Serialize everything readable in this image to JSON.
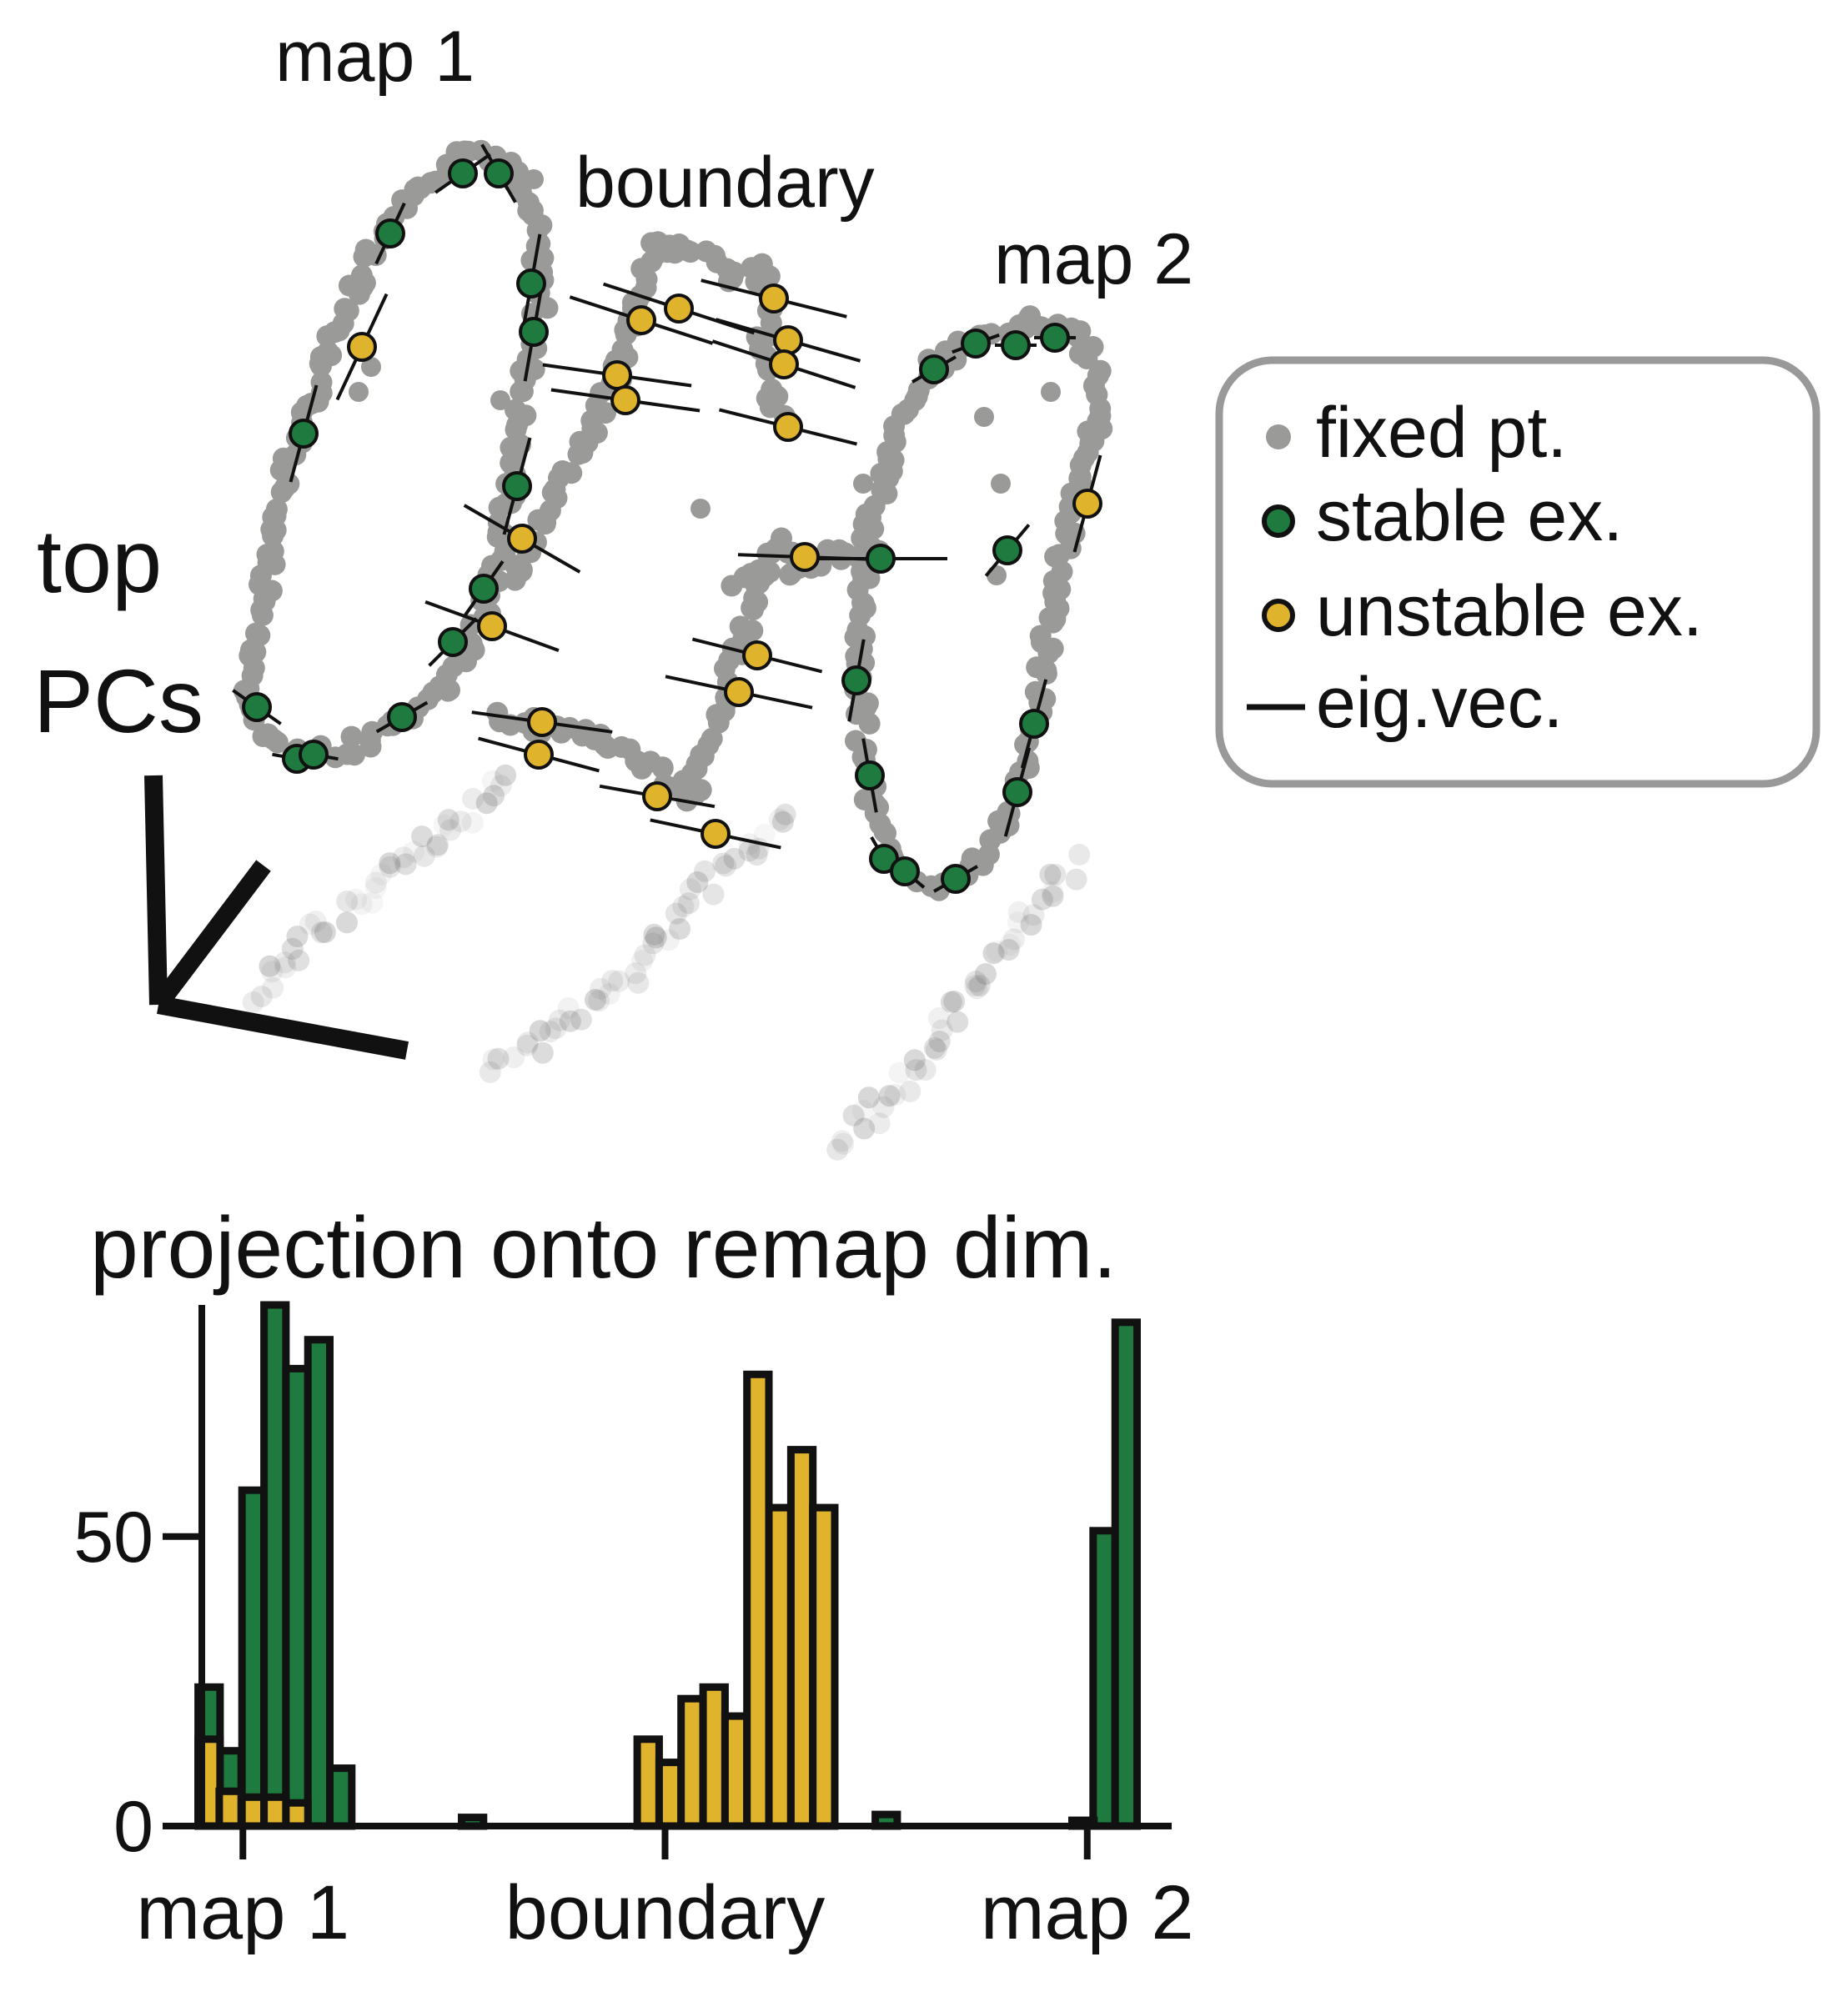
{
  "scatter_panel": {
    "labels": {
      "map1": "map 1",
      "boundary": "boundary",
      "map2": "map 2"
    },
    "axes_label_line1": "top",
    "axes_label_line2": "PCs",
    "legend": [
      {
        "key": "fixed",
        "label": "fixed pt.",
        "color": "#9a9a98"
      },
      {
        "key": "stable",
        "label": "stable ex.",
        "color": "#1e7a3e"
      },
      {
        "key": "unstable",
        "label": "unstable ex.",
        "color": "#e0b32c"
      },
      {
        "key": "eig",
        "label": "eig.vec.",
        "color": "#111111"
      }
    ]
  },
  "chart_data": {
    "type": "bar",
    "title": "projection onto remap dim.",
    "xlabel": "",
    "ylabel": "",
    "ylim": [
      0,
      90
    ],
    "yticks": [
      0,
      50
    ],
    "xticks": [
      {
        "label": "map 1",
        "x": -1.0
      },
      {
        "label": "boundary",
        "x": 0.0
      },
      {
        "label": "map 2",
        "x": 1.0
      }
    ],
    "xlim": [
      -1.2,
      1.2
    ],
    "bin_width": 0.052,
    "colors": {
      "stable": "#1e7a3e",
      "unstable": "#e0b32c"
    },
    "series": [
      {
        "name": "stable ex.",
        "bins": [
          {
            "x": -1.08,
            "value": 24
          },
          {
            "x": -1.03,
            "value": 13
          },
          {
            "x": -0.976,
            "value": 58
          },
          {
            "x": -0.924,
            "value": 90
          },
          {
            "x": -0.872,
            "value": 79
          },
          {
            "x": -0.82,
            "value": 84
          },
          {
            "x": -0.768,
            "value": 10
          },
          {
            "x": -0.456,
            "value": 1.5
          },
          {
            "x": 1.04,
            "value": 51
          },
          {
            "x": 1.092,
            "value": 87
          },
          {
            "x": 0.99,
            "value": 1
          },
          {
            "x": 0.524,
            "value": 2
          }
        ]
      },
      {
        "name": "unstable ex.",
        "bins": [
          {
            "x": -1.08,
            "value": 15
          },
          {
            "x": -1.03,
            "value": 6
          },
          {
            "x": -0.976,
            "value": 5
          },
          {
            "x": -0.924,
            "value": 5
          },
          {
            "x": -0.872,
            "value": 4
          },
          {
            "x": -0.04,
            "value": 15
          },
          {
            "x": 0.012,
            "value": 11
          },
          {
            "x": 0.064,
            "value": 22
          },
          {
            "x": 0.116,
            "value": 24
          },
          {
            "x": 0.168,
            "value": 19
          },
          {
            "x": 0.22,
            "value": 78
          },
          {
            "x": 0.272,
            "value": 55
          },
          {
            "x": 0.324,
            "value": 65
          },
          {
            "x": 0.376,
            "value": 55
          }
        ]
      }
    ]
  }
}
